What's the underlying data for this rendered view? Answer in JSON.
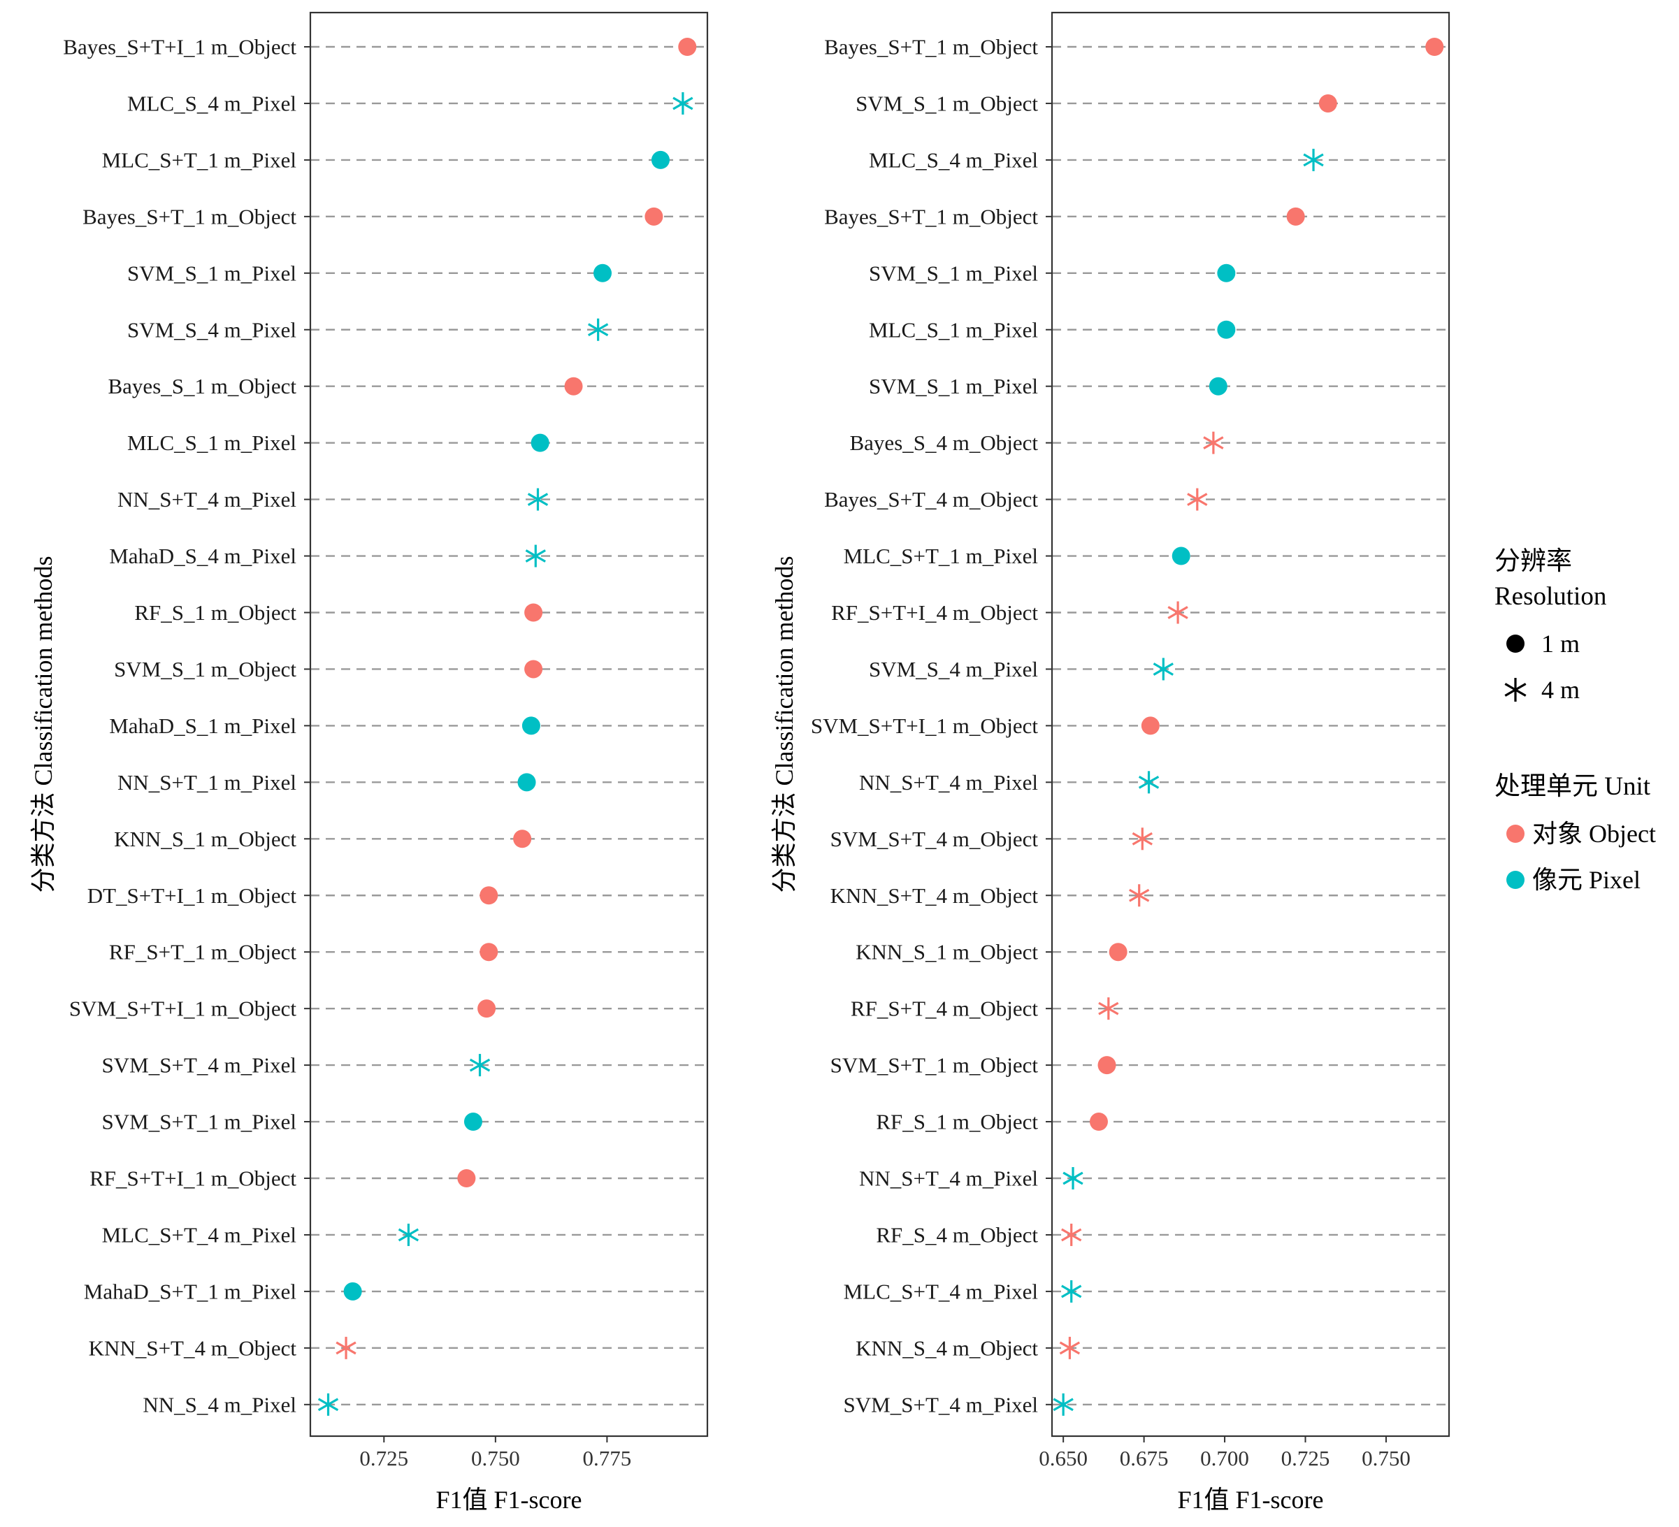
{
  "colors": {
    "object": "#F8766D",
    "pixel": "#00BFC4",
    "gridline": "#999999",
    "frame": "#333333"
  },
  "legend": {
    "resolution_title": [
      "分辨率",
      "Resolution"
    ],
    "resolution_items": [
      {
        "shape": "circle",
        "label": "1 m"
      },
      {
        "shape": "asterisk",
        "label": "4 m"
      }
    ],
    "unit_title": "处理单元  Unit",
    "unit_items": [
      {
        "key": "object",
        "label": "对象  Object"
      },
      {
        "key": "pixel",
        "label": "像元  Pixel"
      }
    ]
  },
  "chart_data": [
    {
      "type": "scatter",
      "title": "",
      "xlabel": "F1值  F1-score",
      "ylabel": "分类方法  Classification methods",
      "xlim": [
        0.7085,
        0.7975
      ],
      "xticks": [
        0.725,
        0.75,
        0.775
      ],
      "xtick_labels": [
        "0.725",
        "0.750",
        "0.775"
      ],
      "grid": "horizontal dashed",
      "points": [
        {
          "method": "Bayes_S+T+I_1 m_Object",
          "value": 0.793,
          "resolution": "1 m",
          "unit": "Object"
        },
        {
          "method": "MLC_S_4 m_Pixel",
          "value": 0.792,
          "resolution": "4 m",
          "unit": "Pixel"
        },
        {
          "method": "MLC_S+T_1 m_Pixel",
          "value": 0.787,
          "resolution": "1 m",
          "unit": "Pixel"
        },
        {
          "method": "Bayes_S+T_1 m_Object",
          "value": 0.7855,
          "resolution": "1 m",
          "unit": "Object"
        },
        {
          "method": "SVM_S_1 m_Pixel",
          "value": 0.774,
          "resolution": "1 m",
          "unit": "Pixel"
        },
        {
          "method": "SVM_S_4 m_Pixel",
          "value": 0.773,
          "resolution": "4 m",
          "unit": "Pixel"
        },
        {
          "method": "Bayes_S_1 m_Object",
          "value": 0.7675,
          "resolution": "1 m",
          "unit": "Object"
        },
        {
          "method": "MLC_S_1 m_Pixel",
          "value": 0.76,
          "resolution": "1 m",
          "unit": "Pixel"
        },
        {
          "method": "NN_S+T_4 m_Pixel",
          "value": 0.7595,
          "resolution": "4 m",
          "unit": "Pixel"
        },
        {
          "method": "MahaD_S_4 m_Pixel",
          "value": 0.759,
          "resolution": "4 m",
          "unit": "Pixel"
        },
        {
          "method": "RF_S_1 m_Object",
          "value": 0.7585,
          "resolution": "1 m",
          "unit": "Object"
        },
        {
          "method": "SVM_S_1 m_Object",
          "value": 0.7585,
          "resolution": "1 m",
          "unit": "Object"
        },
        {
          "method": "MahaD_S_1 m_Pixel",
          "value": 0.758,
          "resolution": "1 m",
          "unit": "Pixel"
        },
        {
          "method": "NN_S+T_1 m_Pixel",
          "value": 0.757,
          "resolution": "1 m",
          "unit": "Pixel"
        },
        {
          "method": "KNN_S_1 m_Object",
          "value": 0.756,
          "resolution": "1 m",
          "unit": "Object"
        },
        {
          "method": "DT_S+T+I_1 m_Object",
          "value": 0.7485,
          "resolution": "1 m",
          "unit": "Object"
        },
        {
          "method": "RF_S+T_1 m_Object",
          "value": 0.7485,
          "resolution": "1 m",
          "unit": "Object"
        },
        {
          "method": "SVM_S+T+I_1 m_Object",
          "value": 0.748,
          "resolution": "1 m",
          "unit": "Object"
        },
        {
          "method": "SVM_S+T_4 m_Pixel",
          "value": 0.7465,
          "resolution": "4 m",
          "unit": "Pixel"
        },
        {
          "method": "SVM_S+T_1 m_Pixel",
          "value": 0.745,
          "resolution": "1 m",
          "unit": "Pixel"
        },
        {
          "method": "RF_S+T+I_1 m_Object",
          "value": 0.7435,
          "resolution": "1 m",
          "unit": "Object"
        },
        {
          "method": "MLC_S+T_4 m_Pixel",
          "value": 0.7305,
          "resolution": "4 m",
          "unit": "Pixel"
        },
        {
          "method": "MahaD_S+T_1 m_Pixel",
          "value": 0.718,
          "resolution": "1 m",
          "unit": "Pixel"
        },
        {
          "method": "KNN_S+T_4 m_Object",
          "value": 0.7165,
          "resolution": "4 m",
          "unit": "Object"
        },
        {
          "method": "NN_S_4 m_Pixel",
          "value": 0.7125,
          "resolution": "4 m",
          "unit": "Pixel"
        }
      ]
    },
    {
      "type": "scatter",
      "title": "",
      "xlabel": "F1值  F1-score",
      "ylabel": "分类方法  Classification methods",
      "xlim": [
        0.6465,
        0.7695
      ],
      "xticks": [
        0.65,
        0.675,
        0.7,
        0.725,
        0.75
      ],
      "xtick_labels": [
        "0.650",
        "0.675",
        "0.700",
        "0.725",
        "0.750"
      ],
      "grid": "horizontal dashed",
      "points": [
        {
          "method": "Bayes_S+T_1 m_Object",
          "value": 0.765,
          "resolution": "1 m",
          "unit": "Object"
        },
        {
          "method": "SVM_S_1 m_Object",
          "value": 0.732,
          "resolution": "1 m",
          "unit": "Object"
        },
        {
          "method": "MLC_S_4 m_Pixel",
          "value": 0.7275,
          "resolution": "4 m",
          "unit": "Pixel"
        },
        {
          "method": "Bayes_S+T_1 m_Object",
          "value": 0.722,
          "resolution": "1 m",
          "unit": "Object"
        },
        {
          "method": "SVM_S_1 m_Pixel",
          "value": 0.7005,
          "resolution": "1 m",
          "unit": "Pixel"
        },
        {
          "method": "MLC_S_1 m_Pixel",
          "value": 0.7005,
          "resolution": "1 m",
          "unit": "Pixel"
        },
        {
          "method": "SVM_S_1 m_Pixel",
          "value": 0.698,
          "resolution": "1 m",
          "unit": "Pixel"
        },
        {
          "method": "Bayes_S_4 m_Object",
          "value": 0.6965,
          "resolution": "4 m",
          "unit": "Object"
        },
        {
          "method": "Bayes_S+T_4 m_Object",
          "value": 0.6915,
          "resolution": "4 m",
          "unit": "Object"
        },
        {
          "method": "MLC_S+T_1 m_Pixel",
          "value": 0.6865,
          "resolution": "1 m",
          "unit": "Pixel"
        },
        {
          "method": "RF_S+T+I_4 m_Object",
          "value": 0.6855,
          "resolution": "4 m",
          "unit": "Object"
        },
        {
          "method": "SVM_S_4 m_Pixel",
          "value": 0.681,
          "resolution": "4 m",
          "unit": "Pixel"
        },
        {
          "method": "SVM_S+T+I_1 m_Object",
          "value": 0.677,
          "resolution": "1 m",
          "unit": "Object"
        },
        {
          "method": "NN_S+T_4 m_Pixel",
          "value": 0.6765,
          "resolution": "4 m",
          "unit": "Pixel"
        },
        {
          "method": "SVM_S+T_4 m_Object",
          "value": 0.6745,
          "resolution": "4 m",
          "unit": "Object"
        },
        {
          "method": "KNN_S+T_4 m_Object",
          "value": 0.6735,
          "resolution": "4 m",
          "unit": "Object"
        },
        {
          "method": "KNN_S_1 m_Object",
          "value": 0.667,
          "resolution": "1 m",
          "unit": "Object"
        },
        {
          "method": "RF_S+T_4 m_Object",
          "value": 0.664,
          "resolution": "4 m",
          "unit": "Object"
        },
        {
          "method": "SVM_S+T_1 m_Object",
          "value": 0.6635,
          "resolution": "1 m",
          "unit": "Object"
        },
        {
          "method": "RF_S_1 m_Object",
          "value": 0.661,
          "resolution": "1 m",
          "unit": "Object"
        },
        {
          "method": "NN_S+T_4 m_Pixel",
          "value": 0.653,
          "resolution": "4 m",
          "unit": "Pixel"
        },
        {
          "method": "RF_S_4 m_Object",
          "value": 0.6525,
          "resolution": "4 m",
          "unit": "Object"
        },
        {
          "method": "MLC_S+T_4 m_Pixel",
          "value": 0.6525,
          "resolution": "4 m",
          "unit": "Pixel"
        },
        {
          "method": "KNN_S_4 m_Object",
          "value": 0.652,
          "resolution": "4 m",
          "unit": "Object"
        },
        {
          "method": "SVM_S+T_4 m_Pixel",
          "value": 0.65,
          "resolution": "4 m",
          "unit": "Pixel"
        }
      ]
    }
  ]
}
